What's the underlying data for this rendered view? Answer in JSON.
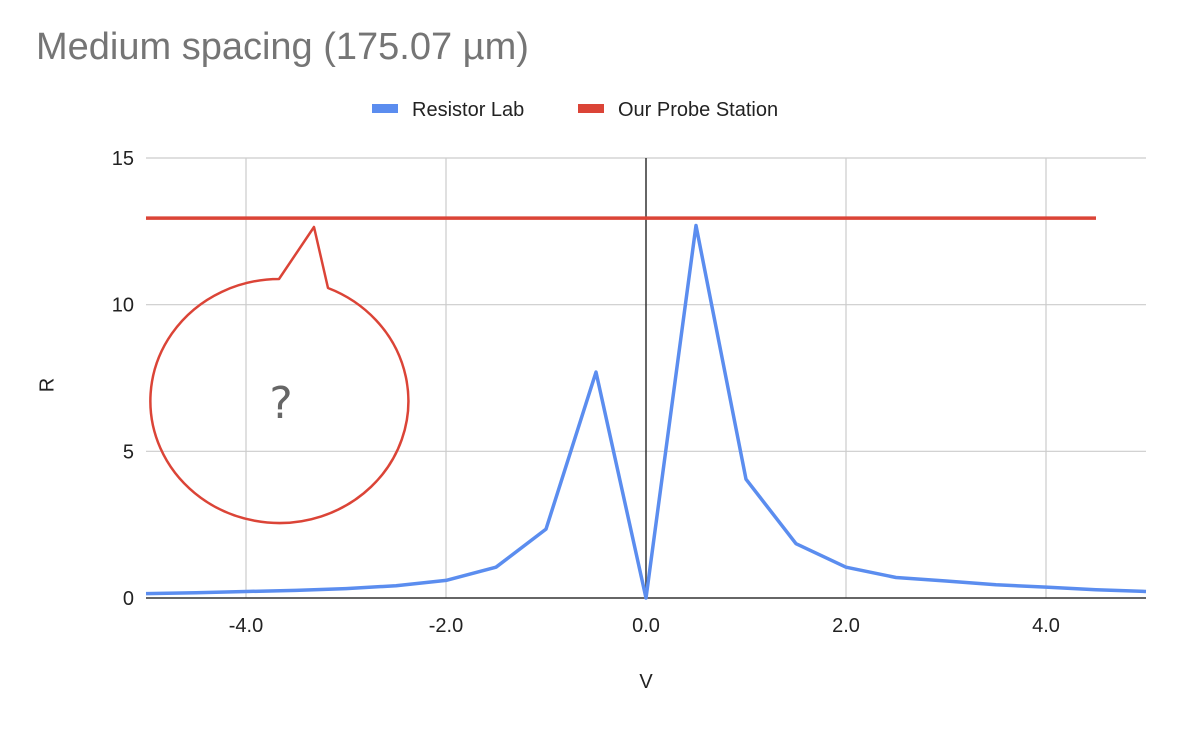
{
  "chart_data": {
    "type": "line",
    "title": "Medium spacing (175.07 µm)",
    "xlabel": "V",
    "ylabel": "R",
    "xlim": [
      -5,
      5
    ],
    "ylim": [
      0,
      15
    ],
    "x_ticks": [
      -4.0,
      -2.0,
      0.0,
      2.0,
      4.0
    ],
    "x_tick_labels": [
      "-4.0",
      "-2.0",
      "0.0",
      "2.0",
      "4.0"
    ],
    "y_ticks": [
      0,
      5,
      10,
      15
    ],
    "y_tick_labels": [
      "0",
      "5",
      "10",
      "15"
    ],
    "grid": true,
    "legend_position": "top",
    "series": [
      {
        "name": "Resistor Lab",
        "color": "#5b8def",
        "x": [
          -5,
          -4.5,
          -4,
          -3.5,
          -3,
          -2.5,
          -2,
          -1.5,
          -1,
          -0.5,
          0,
          0.5,
          1,
          1.5,
          2,
          2.5,
          3,
          3.5,
          4,
          4.5,
          5
        ],
        "y": [
          0.15,
          0.18,
          0.22,
          0.26,
          0.32,
          0.42,
          0.6,
          1.05,
          2.35,
          7.7,
          0,
          12.7,
          4.05,
          1.85,
          1.05,
          0.7,
          0.58,
          0.45,
          0.37,
          0.28,
          0.22
        ]
      },
      {
        "name": "Our Probe Station",
        "color": "#db4437",
        "x": [
          -5,
          4.5
        ],
        "y": [
          12.95,
          12.95
        ]
      }
    ],
    "annotations": [
      {
        "type": "speech-bubble",
        "text": "?",
        "color": "#db4437"
      }
    ]
  }
}
